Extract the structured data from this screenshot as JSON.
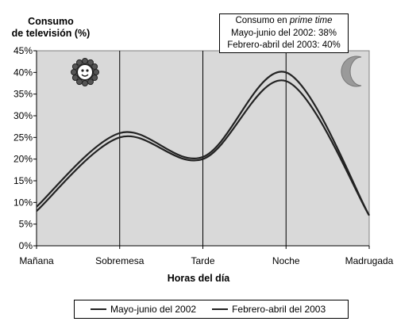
{
  "chart_data": {
    "type": "line",
    "ylabel": [
      "Consumo",
      "de televisión (%)"
    ],
    "xlabel": "Horas del día",
    "categories": [
      "Mañana",
      "Sobremesa",
      "Tarde",
      "Noche",
      "Madrugada"
    ],
    "yticks": [
      "0%",
      "5%",
      "10%",
      "15%",
      "20%",
      "25%",
      "30%",
      "35%",
      "40%",
      "45%"
    ],
    "ylim": [
      0,
      45
    ],
    "grid": "vertical lines at Sobremesa, Tarde, Noche",
    "series": [
      {
        "name": "Mayo-junio del 2002",
        "values": [
          8,
          25,
          20,
          38,
          7
        ]
      },
      {
        "name": "Febrero-abril del 2003",
        "values": [
          9,
          26,
          20.5,
          40,
          7
        ]
      }
    ],
    "annotation": {
      "title_prefix": "Consumo en ",
      "title_italic": "prime time",
      "line1": "Mayo-junio del 2002: 38%",
      "line2": "Febrero-abril del 2003: 40%"
    },
    "icons": [
      "sun-icon",
      "moon-icon"
    ],
    "colors": {
      "plot_bg": "#d9d9d9",
      "line": "#222222"
    },
    "legend_position": "bottom"
  }
}
